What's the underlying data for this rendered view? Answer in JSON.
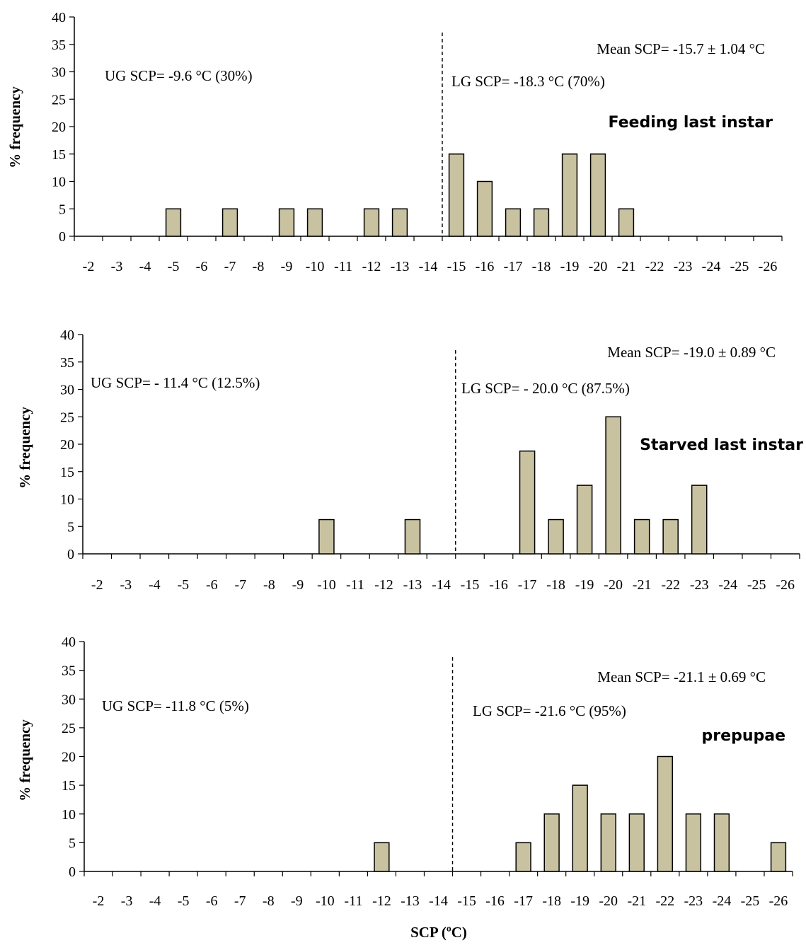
{
  "figure": {
    "xlabel": "SCP (ºC)",
    "bar_color": "#c9c2a0",
    "bar_stroke": "#000000"
  },
  "chart_data": [
    {
      "type": "bar",
      "title": "Feeding last instar",
      "ylabel": "% frequency",
      "xlabel": "",
      "ylim": [
        0,
        40
      ],
      "yticks": [
        0,
        5,
        10,
        15,
        20,
        25,
        30,
        35,
        40
      ],
      "categories": [
        "-2",
        "-3",
        "-4",
        "-5",
        "-6",
        "-7",
        "-8",
        "-9",
        "-10",
        "-11",
        "-12",
        "-13",
        "-14",
        "-15",
        "-16",
        "-17",
        "-18",
        "-19",
        "-20",
        "-21",
        "-22",
        "-23",
        "-24",
        "-25",
        "-26"
      ],
      "values": [
        0,
        0,
        0,
        5,
        0,
        5,
        0,
        5,
        5,
        0,
        5,
        5,
        0,
        15,
        10,
        5,
        5,
        15,
        15,
        5,
        0,
        0,
        0,
        0,
        0
      ],
      "divider_x": -14.5,
      "annotations": {
        "mean": "Mean SCP= -15.7 ± 1.04 °C",
        "ug": "UG SCP= -9.6 °C (30%)",
        "lg": "LG SCP= -18.3 °C (70%)"
      }
    },
    {
      "type": "bar",
      "title": "Starved last instar",
      "ylabel": "% frequency",
      "xlabel": "",
      "ylim": [
        0,
        40
      ],
      "yticks": [
        0,
        5,
        10,
        15,
        20,
        25,
        30,
        35,
        40
      ],
      "categories": [
        "-2",
        "-3",
        "-4",
        "-5",
        "-6",
        "-7",
        "-8",
        "-9",
        "-10",
        "-11",
        "-12",
        "-13",
        "-14",
        "-15",
        "-16",
        "-17",
        "-18",
        "-19",
        "-20",
        "-21",
        "-22",
        "-23",
        "-24",
        "-25",
        "-26"
      ],
      "values": [
        0,
        0,
        0,
        0,
        0,
        0,
        0,
        0,
        6.25,
        0,
        0,
        6.25,
        0,
        0,
        0,
        18.75,
        6.25,
        12.5,
        25,
        6.25,
        6.25,
        12.5,
        0,
        0,
        0
      ],
      "divider_x": -14.5,
      "annotations": {
        "mean": "Mean SCP= -19.0 ± 0.89 °C",
        "ug": "UG SCP= - 11.4 °C (12.5%)",
        "lg": "LG SCP= - 20.0 °C (87.5%)"
      }
    },
    {
      "type": "bar",
      "title": "prepupae",
      "ylabel": "% frequency",
      "xlabel": "SCP (ºC)",
      "ylim": [
        0,
        40
      ],
      "yticks": [
        0,
        5,
        10,
        15,
        20,
        25,
        30,
        35,
        40
      ],
      "categories": [
        "-2",
        "-3",
        "-4",
        "-5",
        "-6",
        "-7",
        "-8",
        "-9",
        "-10",
        "-11",
        "-12",
        "-13",
        "-14",
        "-15",
        "-16",
        "-17",
        "-18",
        "-19",
        "-20",
        "-21",
        "-22",
        "-23",
        "-24",
        "-25",
        "-26"
      ],
      "values": [
        0,
        0,
        0,
        0,
        0,
        0,
        0,
        0,
        0,
        0,
        5,
        0,
        0,
        0,
        0,
        5,
        10,
        15,
        10,
        10,
        20,
        10,
        10,
        0,
        5
      ],
      "divider_x": -14.5,
      "annotations": {
        "mean": "Mean SCP= -21.1 ± 0.69 °C",
        "ug": "UG SCP= -11.8 °C (5%)",
        "lg": "LG SCP= -21.6 °C (95%)"
      }
    }
  ]
}
